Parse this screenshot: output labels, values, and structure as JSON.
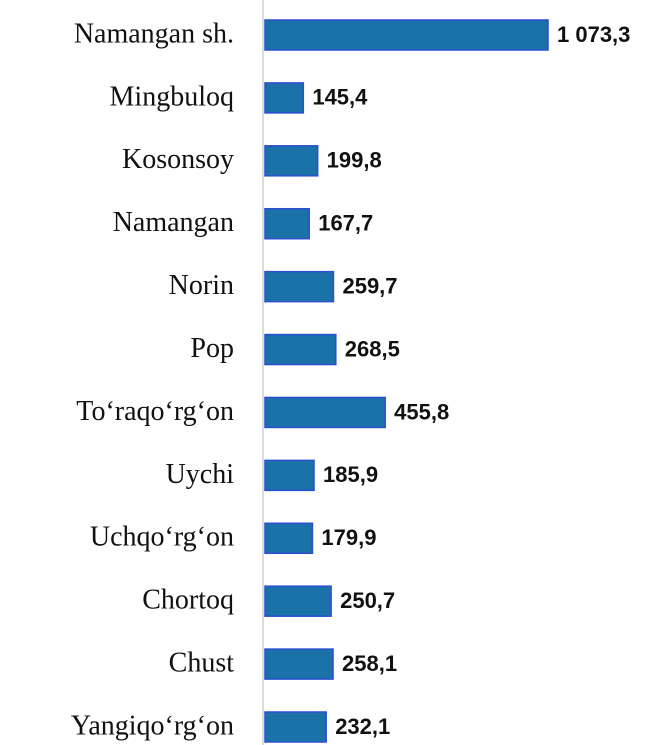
{
  "chart_data": {
    "type": "bar",
    "orientation": "horizontal",
    "categories": [
      "Namangan sh.",
      "Mingbuloq",
      "Kosonsoy",
      "Namangan",
      "Norin",
      "Pop",
      "To‘raqo‘rg‘on",
      "Uychi",
      "Uchqo‘rg‘on",
      "Chortoq",
      "Chust",
      "Yangiqo‘rg‘on"
    ],
    "values": [
      1073.3,
      145.4,
      199.8,
      167.7,
      259.7,
      268.5,
      455.8,
      185.9,
      179.9,
      250.7,
      258.1,
      232.1
    ],
    "value_labels": [
      "1 073,3",
      "145,4",
      "199,8",
      "167,7",
      "259,7",
      "268,5",
      "455,8",
      "185,9",
      "179,9",
      "250,7",
      "258,1",
      "232,1"
    ],
    "color": "#1a72a8"
  }
}
